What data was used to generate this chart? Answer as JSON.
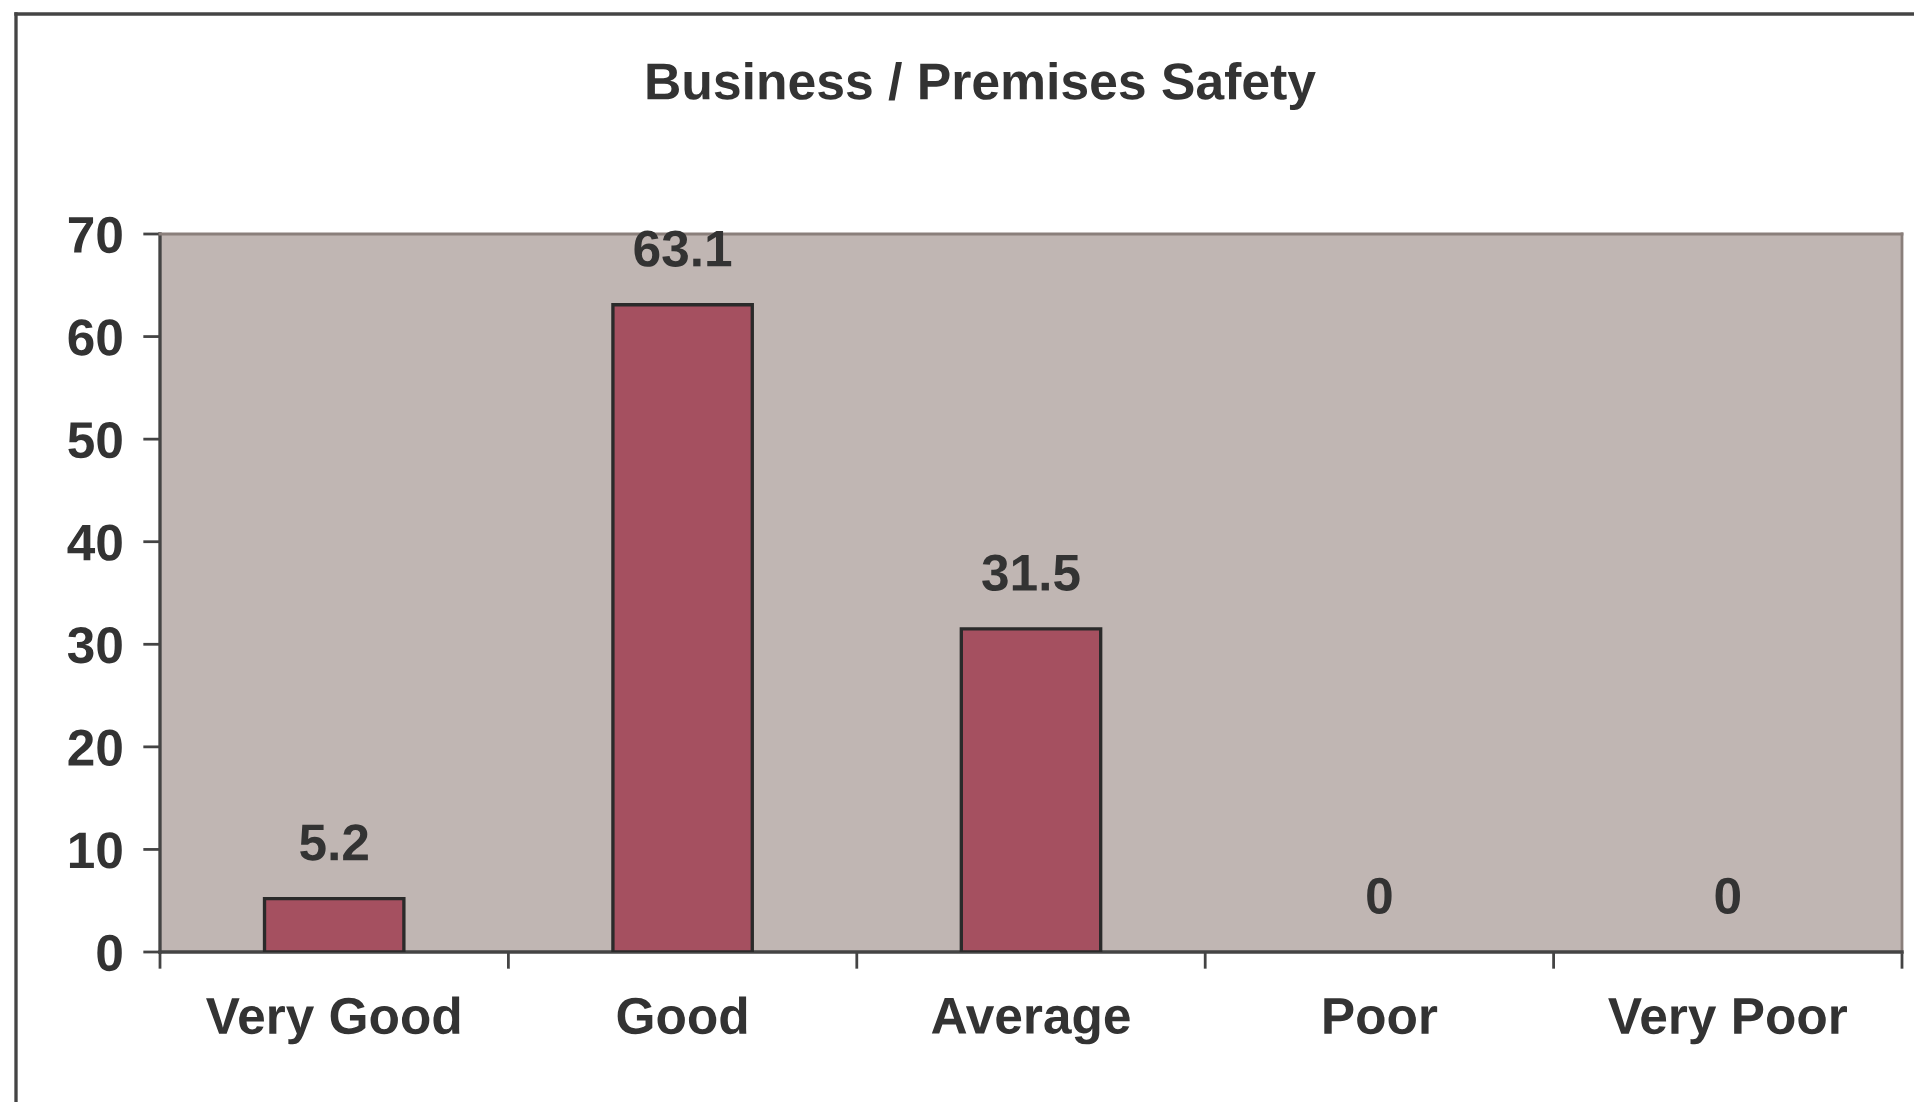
{
  "chart_data": {
    "type": "bar",
    "title": "Business / Premises Safety",
    "categories": [
      "Very Good",
      "Good",
      "Average",
      "Poor",
      "Very Poor"
    ],
    "values": [
      5.2,
      63.1,
      31.5,
      0,
      0
    ],
    "color": "#a55060",
    "ylim": [
      0,
      70
    ],
    "yticks": [
      0,
      10,
      20,
      30,
      40,
      50,
      60,
      70
    ],
    "data_labels": true,
    "grid": false,
    "legend": false
  }
}
